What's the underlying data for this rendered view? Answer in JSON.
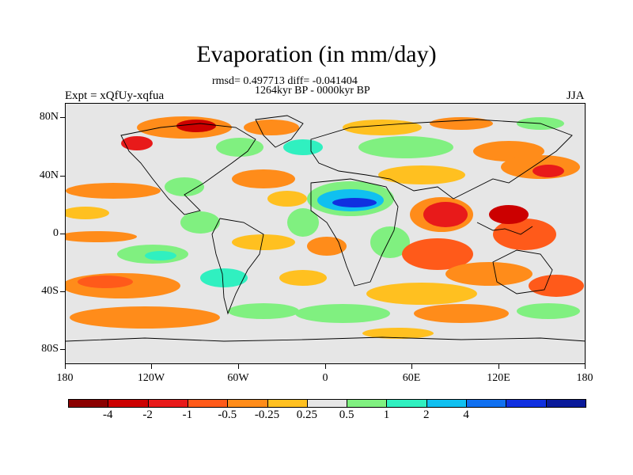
{
  "title": "Evaporation (in mm/day)",
  "subtitle_stats": "rmsd= 0.497713 diff= -0.041404",
  "subtitle_period": "1264kyr BP - 0000kyr BP",
  "left_label": "Expt = xQfUy-xqfua",
  "right_label": "JJA",
  "y_ticks": [
    "80N",
    "40N",
    "0",
    "40S",
    "80S"
  ],
  "x_ticks": [
    "180",
    "120W",
    "60W",
    "0",
    "60E",
    "120E",
    "180"
  ],
  "colorbar": {
    "colors": [
      "#8b0000",
      "#cc0000",
      "#e81a1a",
      "#ff5a1a",
      "#ff8c1a",
      "#ffc020",
      "#e6e6e6",
      "#80f080",
      "#30f0c0",
      "#10c0f0",
      "#1070f0",
      "#1030e0",
      "#0a1a9a"
    ],
    "labels": [
      "-4",
      "-2",
      "-1",
      "-0.5",
      "-0.25",
      "0.25",
      "0.5",
      "1",
      "2",
      "4"
    ]
  }
}
